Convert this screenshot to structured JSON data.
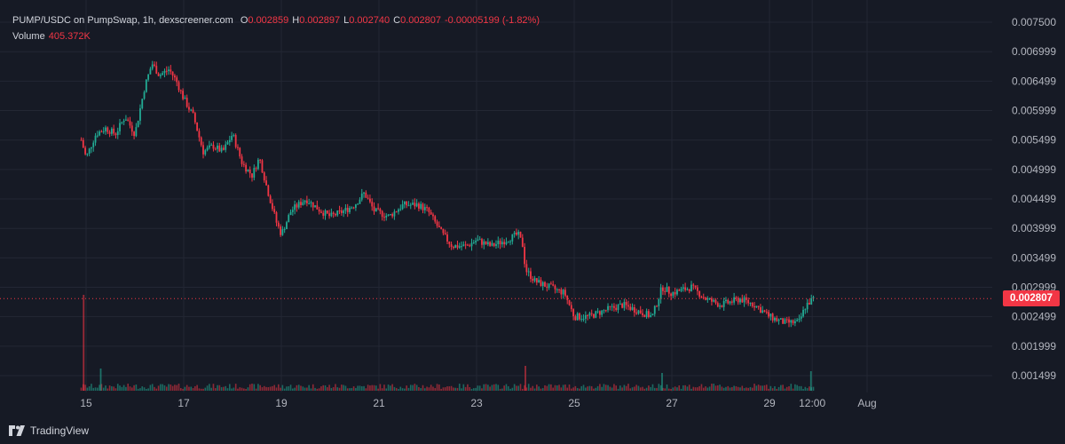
{
  "legend": {
    "pair": "PUMP/USDC on PumpSwap, 1h, dexscreener.com",
    "o_label": "O",
    "o": "0.002859",
    "h_label": "H",
    "h": "0.002897",
    "l_label": "L",
    "l": "0.002740",
    "c_label": "C",
    "c": "0.002807",
    "change": "-0.00005199 (-1.82%)",
    "volume_label": "Volume",
    "volume": "405.372K"
  },
  "last_price": "0.002807",
  "brand": "TradingView",
  "colors": {
    "up": "#22ab94",
    "down": "#f23645",
    "background": "#161a25",
    "grid": "#232734",
    "text": "#b2b5be"
  },
  "chart_data": {
    "type": "candlestick",
    "title": "PUMP/USDC on PumpSwap, 1h, dexscreener.com",
    "x_tick_labels": [
      "15",
      "17",
      "19",
      "21",
      "23",
      "25",
      "27",
      "29",
      "12:00",
      "Aug"
    ],
    "y_tick_labels": [
      "0.007500",
      "0.006999",
      "0.006499",
      "0.005999",
      "0.005499",
      "0.004999",
      "0.004499",
      "0.003999",
      "0.003499",
      "0.002999",
      "0.002499",
      "0.001999",
      "0.001499"
    ],
    "ylim": [
      0.00125,
      0.0076
    ],
    "last_price": 0.002807,
    "grid": true,
    "close_path": [
      [
        14.9,
        0.0055
      ],
      [
        15.0,
        0.0052
      ],
      [
        15.2,
        0.0056
      ],
      [
        15.4,
        0.0057
      ],
      [
        15.6,
        0.0056
      ],
      [
        15.8,
        0.0059
      ],
      [
        16.0,
        0.0056
      ],
      [
        16.2,
        0.0064
      ],
      [
        16.35,
        0.0068
      ],
      [
        16.5,
        0.0066
      ],
      [
        16.7,
        0.0067
      ],
      [
        16.85,
        0.0065
      ],
      [
        17.0,
        0.0062
      ],
      [
        17.2,
        0.0059
      ],
      [
        17.4,
        0.0053
      ],
      [
        17.6,
        0.0054
      ],
      [
        17.8,
        0.0053
      ],
      [
        18.0,
        0.0056
      ],
      [
        18.2,
        0.0051
      ],
      [
        18.4,
        0.0049
      ],
      [
        18.55,
        0.0052
      ],
      [
        18.7,
        0.0047
      ],
      [
        18.9,
        0.0041
      ],
      [
        19.0,
        0.0039
      ],
      [
        19.2,
        0.0043
      ],
      [
        19.5,
        0.0045
      ],
      [
        19.8,
        0.0043
      ],
      [
        20.0,
        0.0042
      ],
      [
        20.3,
        0.0043
      ],
      [
        20.5,
        0.0044
      ],
      [
        20.7,
        0.0046
      ],
      [
        20.9,
        0.0043
      ],
      [
        21.2,
        0.0042
      ],
      [
        21.5,
        0.0044
      ],
      [
        21.8,
        0.0044
      ],
      [
        22.0,
        0.0043
      ],
      [
        22.3,
        0.0039
      ],
      [
        22.5,
        0.0037
      ],
      [
        22.8,
        0.0037
      ],
      [
        23.0,
        0.0038
      ],
      [
        23.3,
        0.0037
      ],
      [
        23.6,
        0.0038
      ],
      [
        23.85,
        0.0039
      ],
      [
        23.95,
        0.0037
      ],
      [
        24.0,
        0.0033
      ],
      [
        24.2,
        0.0031
      ],
      [
        24.5,
        0.003
      ],
      [
        24.8,
        0.0029
      ],
      [
        25.0,
        0.0025
      ],
      [
        25.3,
        0.0025
      ],
      [
        25.6,
        0.0026
      ],
      [
        26.0,
        0.0027
      ],
      [
        26.3,
        0.0026
      ],
      [
        26.6,
        0.0025
      ],
      [
        26.8,
        0.003
      ],
      [
        27.0,
        0.0029
      ],
      [
        27.4,
        0.003
      ],
      [
        27.7,
        0.0028
      ],
      [
        28.0,
        0.0027
      ],
      [
        28.4,
        0.0028
      ],
      [
        28.7,
        0.0027
      ],
      [
        29.0,
        0.0025
      ],
      [
        29.3,
        0.0024
      ],
      [
        29.6,
        0.0024
      ],
      [
        29.75,
        0.0027
      ],
      [
        29.9,
        0.0028
      ]
    ]
  }
}
